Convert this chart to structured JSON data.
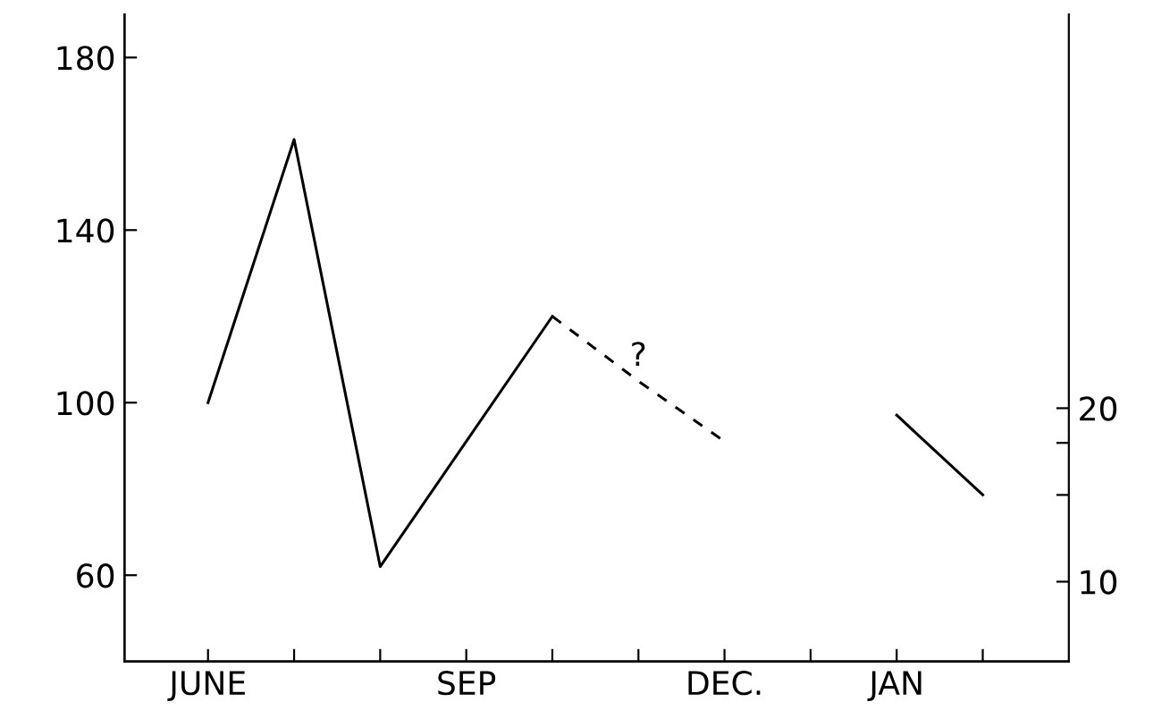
{
  "chart_data": {
    "type": "line",
    "categories": [
      "JUNE",
      null,
      null,
      "SEP",
      null,
      null,
      "DEC.",
      null,
      "JAN",
      null
    ],
    "series": [
      {
        "color": "#000000",
        "line_style": "solid",
        "values": [
          100,
          161,
          62,
          91,
          120,
          null,
          null,
          null,
          null,
          null
        ]
      },
      {
        "color": "#000000",
        "line_style": "dashed",
        "values": [
          null,
          null,
          null,
          null,
          120,
          105,
          91,
          null,
          null,
          null
        ]
      },
      {
        "color": "#000000",
        "line_style": "solid",
        "axis": "y2",
        "values": [
          null,
          null,
          null,
          null,
          null,
          null,
          null,
          null,
          19.6,
          15
        ]
      }
    ],
    "ylim": [
      40,
      190
    ],
    "yticks": [
      60,
      100,
      140,
      180
    ],
    "y2lim": [
      5.4,
      42.7
    ],
    "y2ticks": [
      10,
      {
        "value": 15,
        "label": null
      },
      {
        "value": 18,
        "label": null
      },
      20
    ],
    "annotations": [
      "?"
    ],
    "grid": false,
    "legend": false,
    "marker": "none"
  }
}
